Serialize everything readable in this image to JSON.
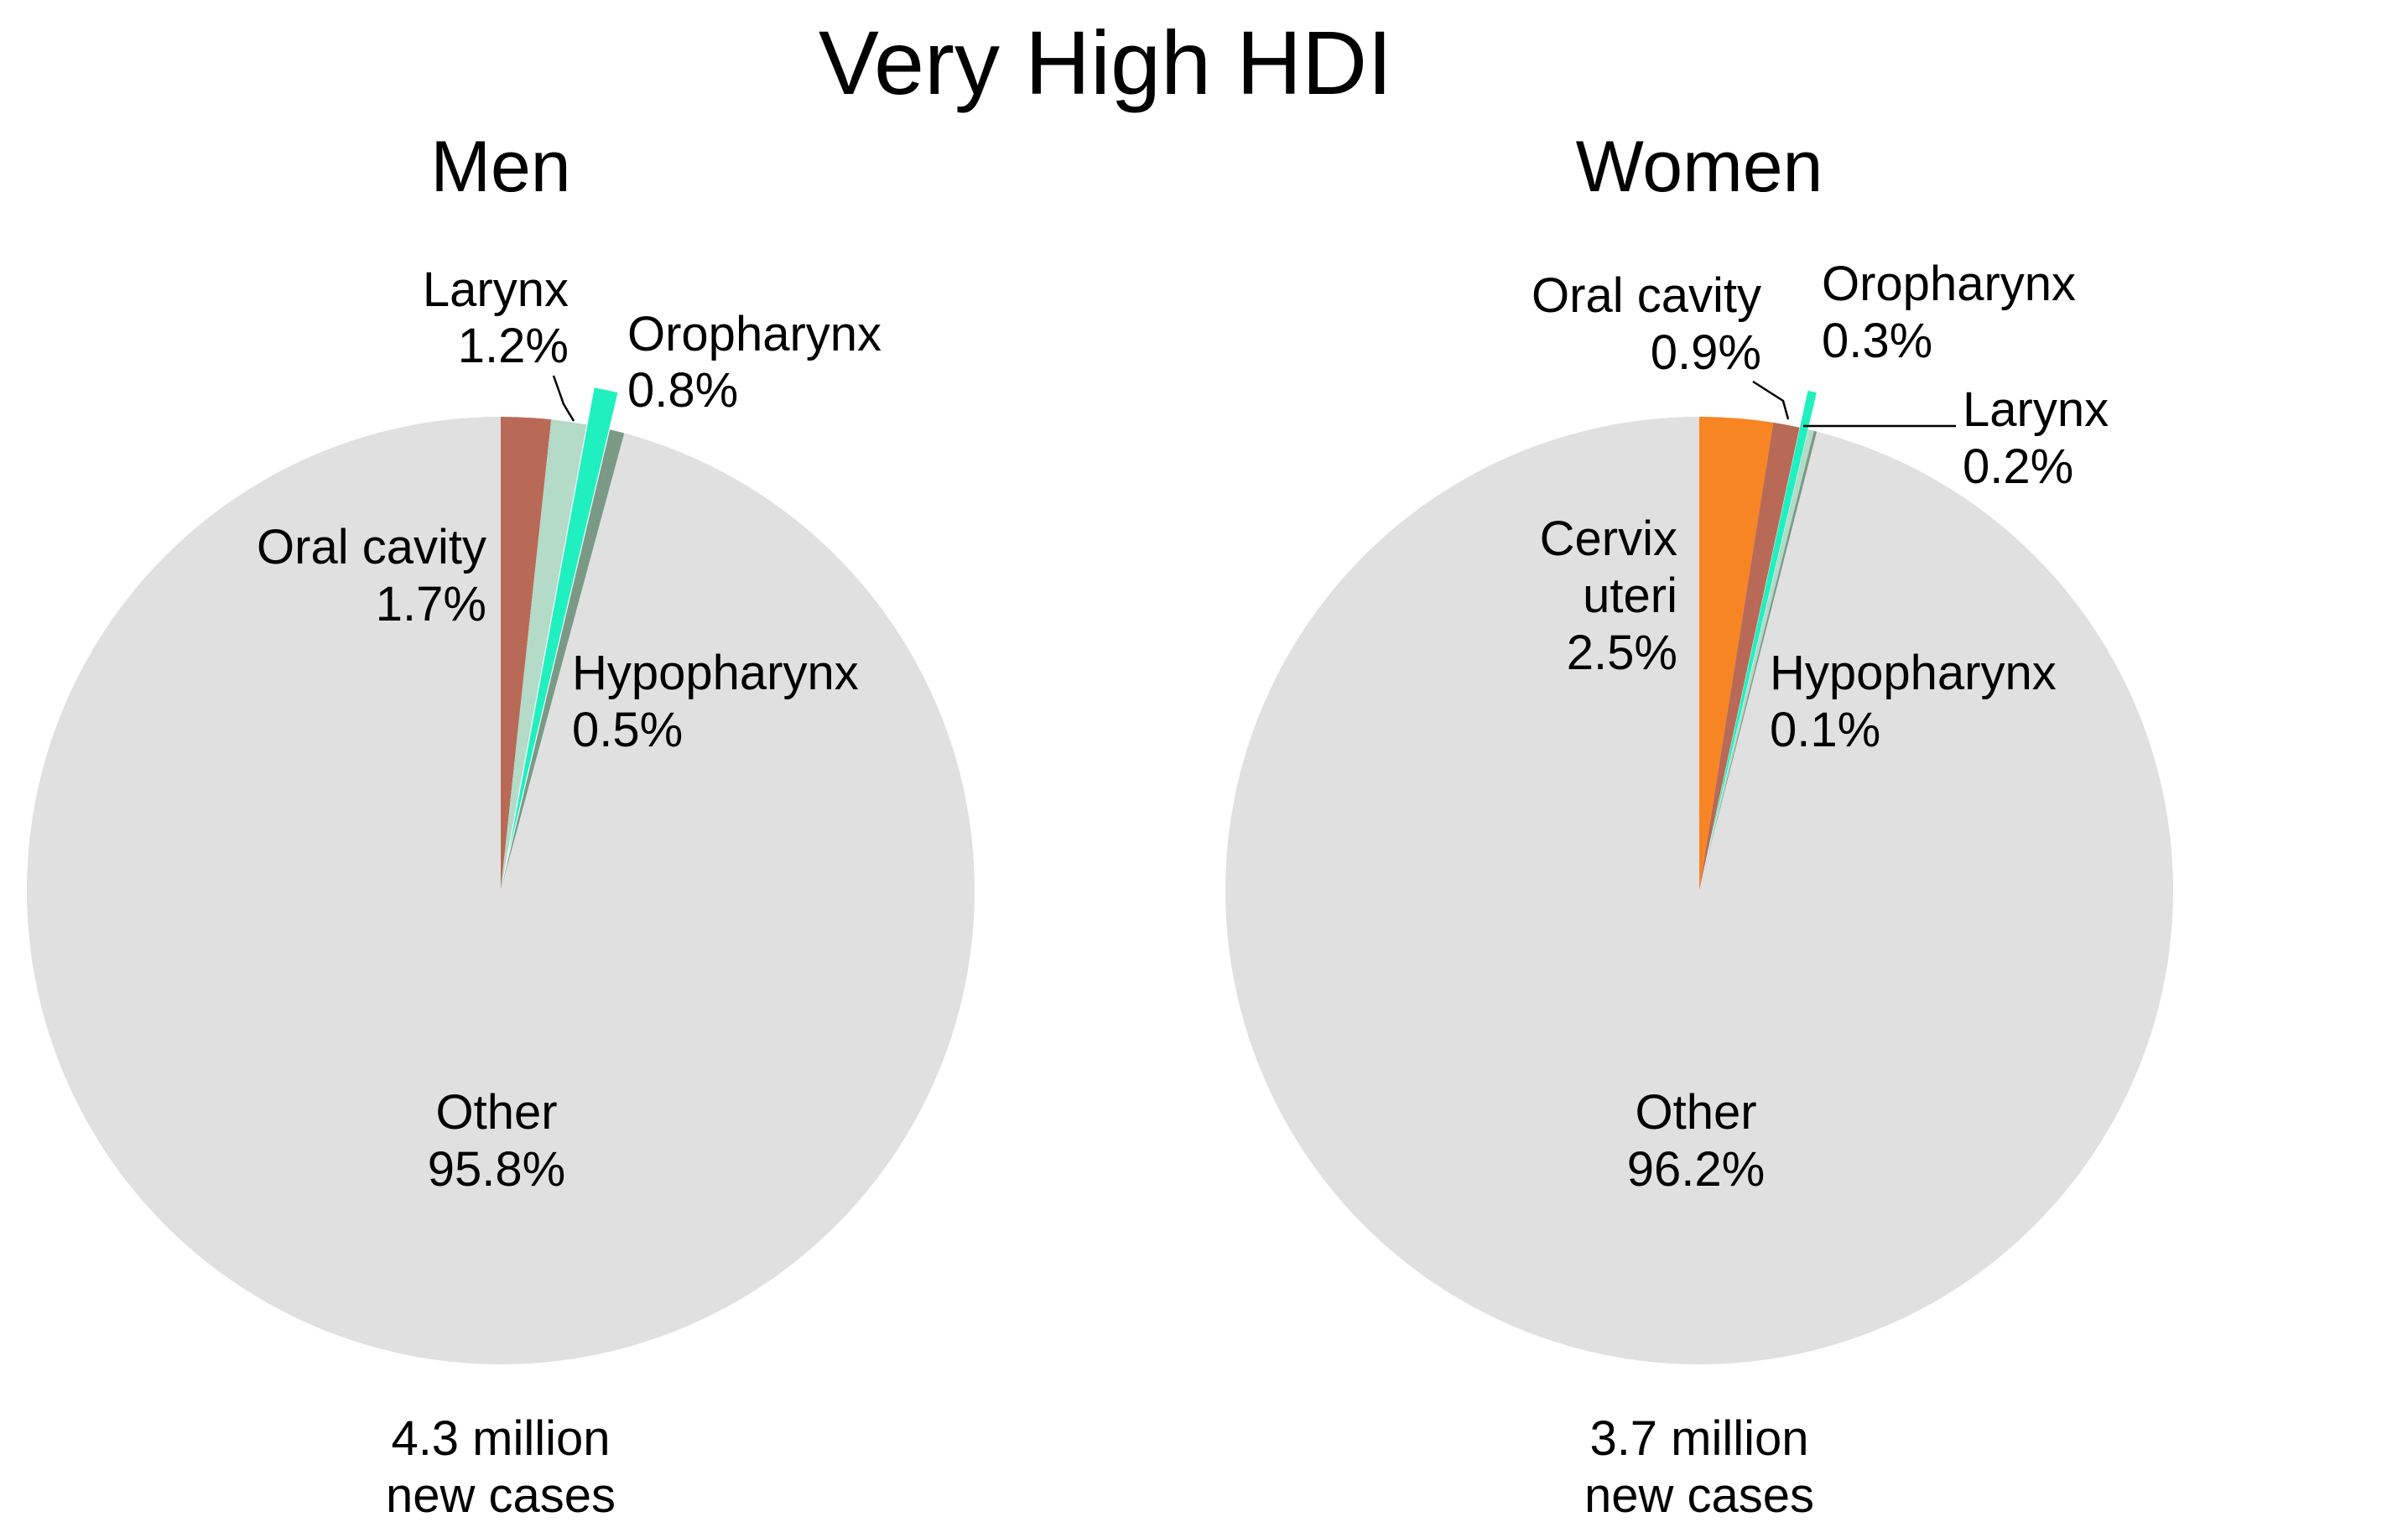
{
  "title": "Very High HDI",
  "colors": {
    "other": "#e0e0e0",
    "oral_cavity": "#b86a57",
    "larynx": "#b4dac8",
    "oropharynx": "#20f0c0",
    "hypopharynx": "#7a9a86",
    "cervix_uteri": "#f88524",
    "leader": "#000000"
  },
  "chart_data": [
    {
      "type": "pie",
      "title": "Men",
      "caption": [
        "4.3 million",
        "new cases"
      ],
      "slices": [
        {
          "key": "oral",
          "name": "Oral cavity",
          "value": 1.7,
          "label": "1.7%",
          "color": "#b86a57",
          "exploded": false
        },
        {
          "key": "larynx",
          "name": "Larynx",
          "value": 1.2,
          "label": "1.2%",
          "color": "#b4dac8",
          "exploded": false
        },
        {
          "key": "oro",
          "name": "Oropharynx",
          "value": 0.8,
          "label": "0.8%",
          "color": "#20f0c0",
          "exploded": true
        },
        {
          "key": "hypo",
          "name": "Hypopharynx",
          "value": 0.5,
          "label": "0.5%",
          "color": "#7a9a86",
          "exploded": false
        },
        {
          "key": "other",
          "name": "Other",
          "value": 95.8,
          "label": "95.8%",
          "color": "#e0e0e0",
          "exploded": false
        }
      ]
    },
    {
      "type": "pie",
      "title": "Women",
      "caption": [
        "3.7 million",
        "new cases"
      ],
      "slices": [
        {
          "key": "cervix",
          "name": [
            "Cervix",
            "uteri"
          ],
          "value": 2.5,
          "label": "2.5%",
          "color": "#f88524",
          "exploded": false
        },
        {
          "key": "oral",
          "name": "Oral cavity",
          "value": 0.9,
          "label": "0.9%",
          "color": "#b86a57",
          "exploded": false
        },
        {
          "key": "oro",
          "name": "Oropharynx",
          "value": 0.3,
          "label": "0.3%",
          "color": "#20f0c0",
          "exploded": true
        },
        {
          "key": "larynx",
          "name": "Larynx",
          "value": 0.2,
          "label": "0.2%",
          "color": "#b4dac8",
          "exploded": false
        },
        {
          "key": "hypo",
          "name": "Hypopharynx",
          "value": 0.1,
          "label": "0.1%",
          "color": "#7a9a86",
          "exploded": false
        },
        {
          "key": "other",
          "name": "Other",
          "value": 96.2,
          "label": "96.2%",
          "color": "#e0e0e0",
          "exploded": false
        }
      ]
    }
  ]
}
